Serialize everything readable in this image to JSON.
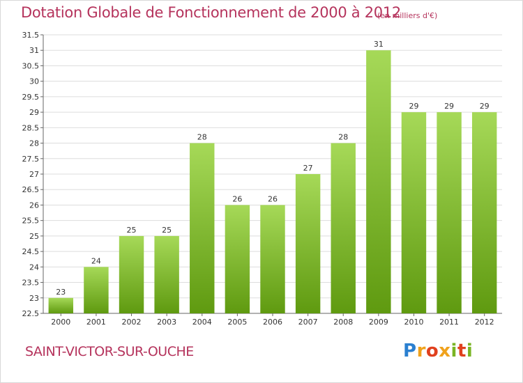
{
  "title": "Dotation Globale de Fonctionnement de 2000 à 2012",
  "unit_note": "(en milliers d'€)",
  "commune": "SAINT-VICTOR-SUR-OUCHE",
  "logo": {
    "text": "Proxiti"
  },
  "colors": {
    "title": "#b5335c",
    "bar_top": "#a6d958",
    "bar_bottom": "#5f9a10",
    "grid": "#dddddd"
  },
  "chart_data": {
    "type": "bar",
    "title": "Dotation Globale de Fonctionnement de 2000 à 2012",
    "xlabel": "",
    "ylabel": "",
    "ylim": [
      22.5,
      31.5
    ],
    "grid": true,
    "yticks": [
      22.5,
      23,
      23.5,
      24,
      24.5,
      25,
      25.5,
      26,
      26.5,
      27,
      27.5,
      28,
      28.5,
      29,
      29.5,
      30,
      30.5,
      31,
      31.5
    ],
    "categories": [
      "2000",
      "2001",
      "2002",
      "2003",
      "2004",
      "2005",
      "2006",
      "2007",
      "2008",
      "2009",
      "2010",
      "2011",
      "2012"
    ],
    "values": [
      23,
      24,
      25,
      25,
      28,
      26,
      26,
      27,
      28,
      31,
      29,
      29,
      29
    ]
  }
}
